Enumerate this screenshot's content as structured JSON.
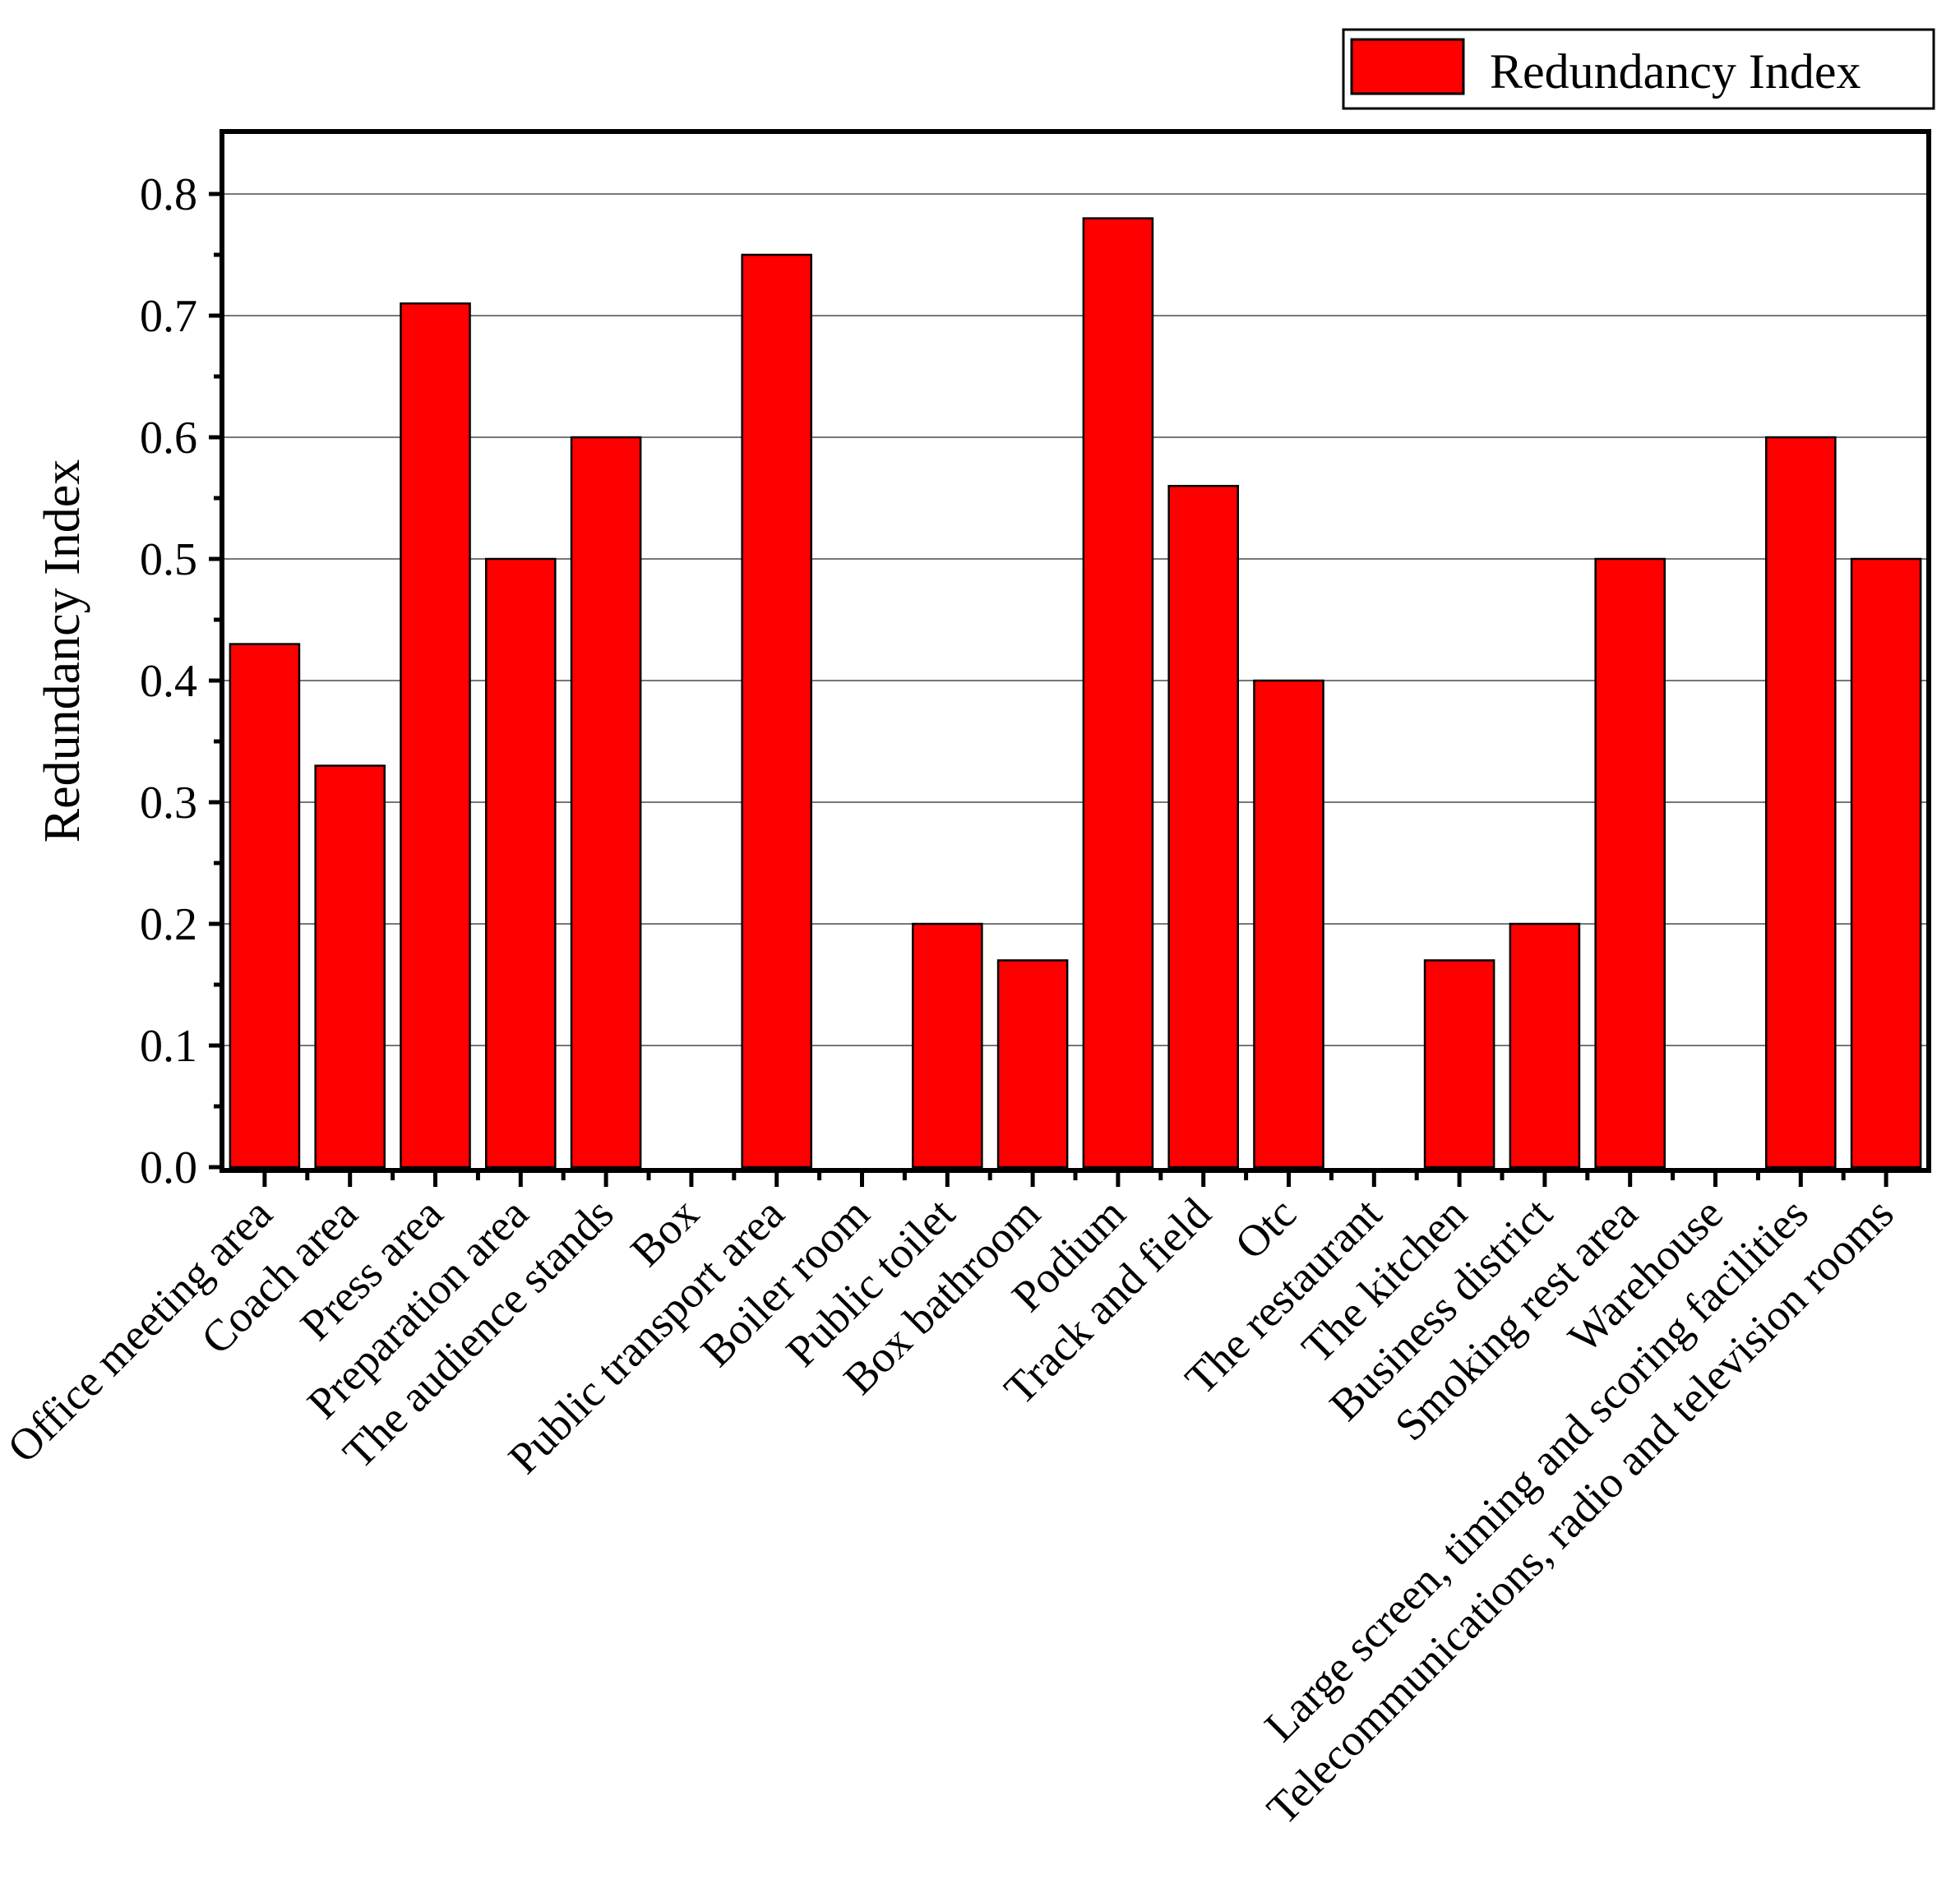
{
  "chart_data": {
    "type": "bar",
    "title": "",
    "xlabel": "",
    "ylabel": "Redundancy Index",
    "ylim": [
      0,
      0.85
    ],
    "yticks": [
      "0.0",
      "0.1",
      "0.2",
      "0.3",
      "0.4",
      "0.5",
      "0.6",
      "0.7",
      "0.8"
    ],
    "grid": true,
    "legend": {
      "position": "top-right",
      "entries": [
        "Redundancy Index"
      ]
    },
    "bar_color": "#ff0000",
    "categories": [
      "Office meeting area",
      "Coach area",
      "Press area",
      "Preparation area",
      "The audience stands",
      "Box",
      "Public transport area",
      "Boiler room",
      "Public toilet",
      "Box bathroom",
      "Podium",
      "Track and field",
      "Otc",
      "The restaurant",
      "The kitchen",
      "Business district",
      "Smoking rest area",
      "Warehouse",
      "Large screen, timing and scoring facilities",
      "Telecommunications, radio and television rooms"
    ],
    "series": [
      {
        "name": "Redundancy Index",
        "values": [
          0.43,
          0.33,
          0.71,
          0.5,
          0.6,
          0.0,
          0.75,
          0.0,
          0.2,
          0.17,
          0.78,
          0.56,
          0.4,
          0.0,
          0.17,
          0.2,
          0.5,
          0.0,
          0.6,
          0.5
        ]
      }
    ]
  }
}
